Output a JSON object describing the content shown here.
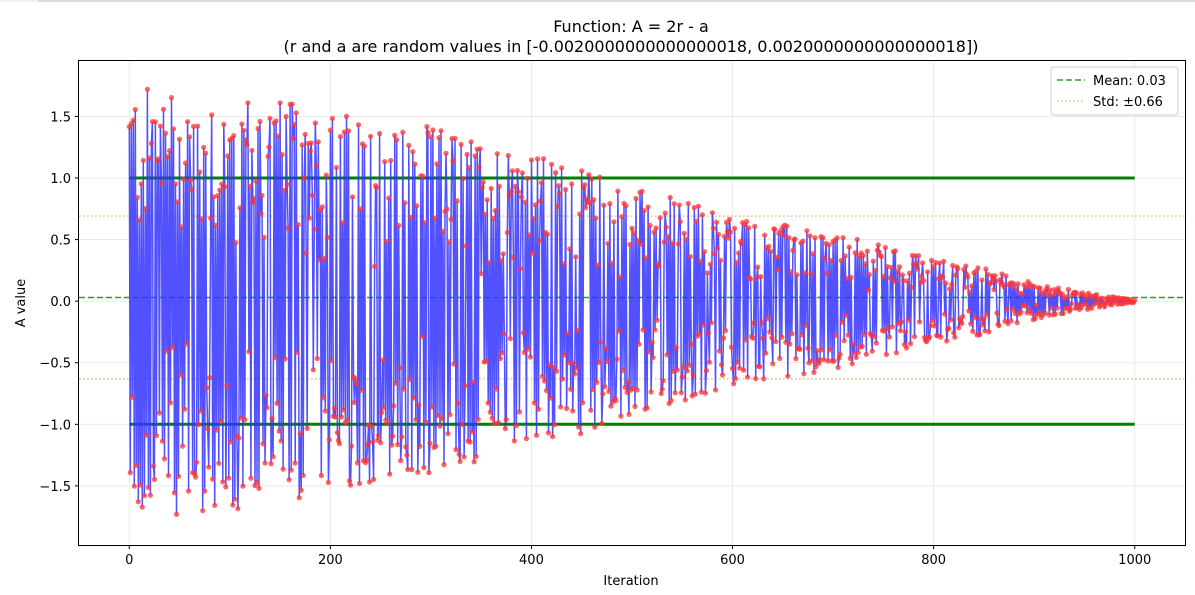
{
  "chart_data": {
    "type": "line",
    "title": "Function: A = 2r - a",
    "subtitle": "(r and a are random values in [-0.0020000000000000018, 0.0020000000000000018])",
    "xlabel": "Iteration",
    "ylabel": "A value",
    "xlim": [
      -50,
      1050
    ],
    "ylim": [
      -1.98,
      1.95
    ],
    "xticks": [
      0,
      200,
      400,
      600,
      800,
      1000
    ],
    "xtick_labels": [
      "0",
      "200",
      "400",
      "600",
      "800",
      "1000"
    ],
    "yticks": [
      -1.5,
      -1.0,
      -0.5,
      0.0,
      0.5,
      1.0,
      1.5
    ],
    "ytick_labels": [
      "−1.5",
      "−1.0",
      "−0.5",
      "0.0",
      "0.5",
      "1.0",
      "1.5"
    ],
    "grid": true,
    "legend_position": "top-right",
    "series": [
      {
        "kind": "line-with-markers",
        "line_color": "#3333ff",
        "marker_color": "#ff3333",
        "envelope": {
          "x": [
            0,
            100,
            200,
            300,
            400,
            500,
            600,
            700,
            800,
            850,
            900,
            950,
            1000
          ],
          "amplitude": [
            1.75,
            1.72,
            1.55,
            1.42,
            1.2,
            0.95,
            0.7,
            0.55,
            0.35,
            0.27,
            0.15,
            0.07,
            0.01
          ]
        },
        "n_points": 1001
      }
    ],
    "reference_lines": [
      {
        "name": "Mean: 0.03",
        "y": 0.03,
        "color": "#2ca02c",
        "style": "dashed",
        "legend": true
      },
      {
        "name": "Std: ±0.66",
        "y": [
          0.69,
          -0.63
        ],
        "color": "#ffbb55",
        "style": "dotted",
        "legend": true
      },
      {
        "y": [
          1.0,
          -1.0
        ],
        "color": "#008000",
        "style": "solid",
        "legend": false,
        "x_range": [
          0,
          1000
        ]
      }
    ]
  }
}
